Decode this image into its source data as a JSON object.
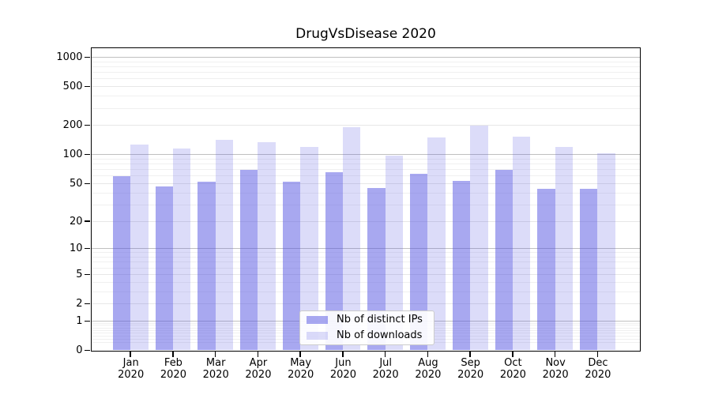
{
  "title": "DrugVsDisease 2020",
  "chart_data": {
    "type": "bar",
    "title": "DrugVsDisease 2020",
    "categories": [
      "Jan 2020",
      "Feb 2020",
      "Mar 2020",
      "Apr 2020",
      "May 2020",
      "Jun 2020",
      "Jul 2020",
      "Aug 2020",
      "Sep 2020",
      "Oct 2020",
      "Nov 2020",
      "Dec 2020"
    ],
    "series": [
      {
        "name": "Nb of distinct IPs",
        "color": "rgba(81,81,225,0.5)",
        "values": [
          60,
          47,
          52,
          69,
          52,
          66,
          45,
          63,
          53,
          70,
          44,
          44
        ]
      },
      {
        "name": "Nb of downloads",
        "color": "rgba(81,81,225,0.2)",
        "values": [
          126,
          115,
          143,
          133,
          119,
          190,
          97,
          149,
          200,
          152,
          119,
          104
        ]
      }
    ],
    "y_axis": {
      "scale": "symlog",
      "ticks": [
        0,
        1,
        2,
        5,
        10,
        20,
        50,
        100,
        200,
        500,
        1000
      ],
      "decade_ticks": [
        1,
        10,
        100,
        1000
      ],
      "max": 1250,
      "grid": "horizontal"
    },
    "legend": {
      "position": "lower-center",
      "entries": [
        "Nb of distinct IPs",
        "Nb of downloads"
      ]
    }
  }
}
